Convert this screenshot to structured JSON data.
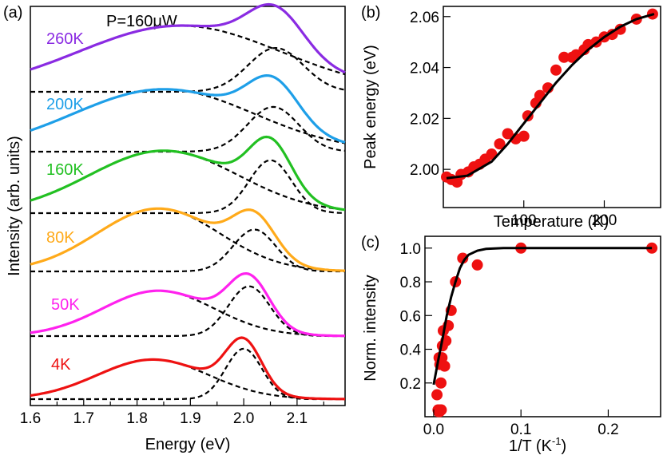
{
  "chart_data": [
    {
      "id": "a",
      "panel_label": "(a)",
      "type": "line",
      "annotation": "P=160μW",
      "xlabel": "Energy (eV)",
      "ylabel": "Intensity (arb. units)",
      "xlim": [
        1.6,
        2.19
      ],
      "xticks": [
        "1.6",
        "1.7",
        "1.8",
        "1.9",
        "2.0",
        "2.1"
      ],
      "series": [
        {
          "label": "260K",
          "color": "#8a2be2",
          "low": {
            "center": 1.88,
            "width": 0.19,
            "amp": 0.92
          },
          "high": {
            "center": 2.06,
            "width": 0.052,
            "amp": 0.61
          }
        },
        {
          "label": "200K",
          "color": "#1e9fe8",
          "low": {
            "center": 1.85,
            "width": 0.17,
            "amp": 0.92
          },
          "high": {
            "center": 2.055,
            "width": 0.048,
            "amp": 0.66
          }
        },
        {
          "label": "160K",
          "color": "#22c022",
          "low": {
            "center": 1.85,
            "width": 0.14,
            "amp": 0.92
          },
          "high": {
            "center": 2.05,
            "width": 0.04,
            "amp": 0.78
          }
        },
        {
          "label": "80K",
          "color": "#ffaa1a",
          "low": {
            "center": 1.84,
            "width": 0.115,
            "amp": 0.96
          },
          "high": {
            "center": 2.02,
            "width": 0.04,
            "amp": 0.64
          }
        },
        {
          "label": "50K",
          "color": "#ff22ee",
          "low": {
            "center": 1.84,
            "width": 0.105,
            "amp": 0.71
          },
          "high": {
            "center": 2.01,
            "width": 0.039,
            "amp": 0.78
          }
        },
        {
          "label": "4K",
          "color": "#ee1111",
          "low": {
            "center": 1.83,
            "width": 0.105,
            "amp": 0.62
          },
          "high": {
            "center": 2.0,
            "width": 0.034,
            "amp": 0.79
          }
        }
      ]
    },
    {
      "id": "b",
      "panel_label": "(b)",
      "type": "scatter",
      "xlabel": "Temperature (K)",
      "ylabel": "Peak energy (eV)",
      "xlim": [
        0,
        270
      ],
      "ylim": [
        1.985,
        2.064
      ],
      "xticks": [
        100,
        200
      ],
      "yticks": [
        2.0,
        2.02,
        2.04,
        2.06
      ],
      "ytick_labels": [
        "2.00",
        "2.02",
        "2.04",
        "2.06"
      ],
      "point_color": "#ee1111",
      "x": [
        4,
        10,
        17,
        22,
        31,
        38,
        45,
        52,
        60,
        70,
        80,
        90,
        100,
        105,
        115,
        120,
        130,
        140,
        150,
        160,
        165,
        175,
        180,
        190,
        200,
        210,
        220,
        240,
        260
      ],
      "y": [
        1.997,
        1.996,
        1.995,
        1.998,
        1.999,
        2.001,
        2.002,
        2.004,
        2.006,
        2.01,
        2.014,
        2.012,
        2.013,
        2.021,
        2.026,
        2.029,
        2.032,
        2.039,
        2.044,
        2.044,
        2.045,
        2.047,
        2.049,
        2.05,
        2.052,
        2.053,
        2.055,
        2.059,
        2.061
      ],
      "fit": [
        [
          4,
          1.9965
        ],
        [
          30,
          1.9975
        ],
        [
          60,
          2.003
        ],
        [
          80,
          2.01
        ],
        [
          100,
          2.018
        ],
        [
          120,
          2.026
        ],
        [
          140,
          2.034
        ],
        [
          160,
          2.041
        ],
        [
          180,
          2.047
        ],
        [
          200,
          2.052
        ],
        [
          220,
          2.056
        ],
        [
          240,
          2.059
        ],
        [
          262,
          2.061
        ]
      ]
    },
    {
      "id": "c",
      "panel_label": "(c)",
      "type": "scatter",
      "xlabel": "1/T (K",
      "xlabel_sup": "-1",
      "xlabel_tail": ")",
      "ylabel": "Norm. intensity",
      "xlim": [
        -0.01,
        0.26
      ],
      "ylim": [
        0.0,
        1.07
      ],
      "xticks": [
        0.0,
        0.1,
        0.2
      ],
      "xtick_labels": [
        "0.0",
        "0.1",
        "0.2"
      ],
      "yticks": [
        0.2,
        0.4,
        0.6,
        0.8,
        1.0
      ],
      "ytick_labels": [
        "0.2",
        "0.4",
        "0.6",
        "0.8",
        "1.0"
      ],
      "point_color": "#ee1111",
      "x": [
        0.0038,
        0.005,
        0.0057,
        0.0062,
        0.0067,
        0.0071,
        0.0077,
        0.0083,
        0.0087,
        0.0095,
        0.01,
        0.011,
        0.0125,
        0.014,
        0.0167,
        0.02,
        0.025,
        0.0333,
        0.05,
        0.1,
        0.25
      ],
      "y": [
        0.13,
        0.04,
        0.03,
        0.35,
        0.03,
        0.31,
        0.04,
        0.2,
        0.04,
        0.35,
        0.42,
        0.51,
        0.3,
        0.45,
        0.54,
        0.63,
        0.8,
        0.94,
        0.9,
        1.0,
        1.0
      ],
      "fit": [
        [
          0.0,
          0.19
        ],
        [
          0.005,
          0.33
        ],
        [
          0.01,
          0.46
        ],
        [
          0.015,
          0.6
        ],
        [
          0.02,
          0.71
        ],
        [
          0.025,
          0.8
        ],
        [
          0.03,
          0.88
        ],
        [
          0.035,
          0.93
        ],
        [
          0.04,
          0.96
        ],
        [
          0.05,
          0.985
        ],
        [
          0.06,
          0.995
        ],
        [
          0.08,
          1.0
        ],
        [
          0.1,
          1.0
        ],
        [
          0.25,
          1.0
        ]
      ]
    }
  ]
}
